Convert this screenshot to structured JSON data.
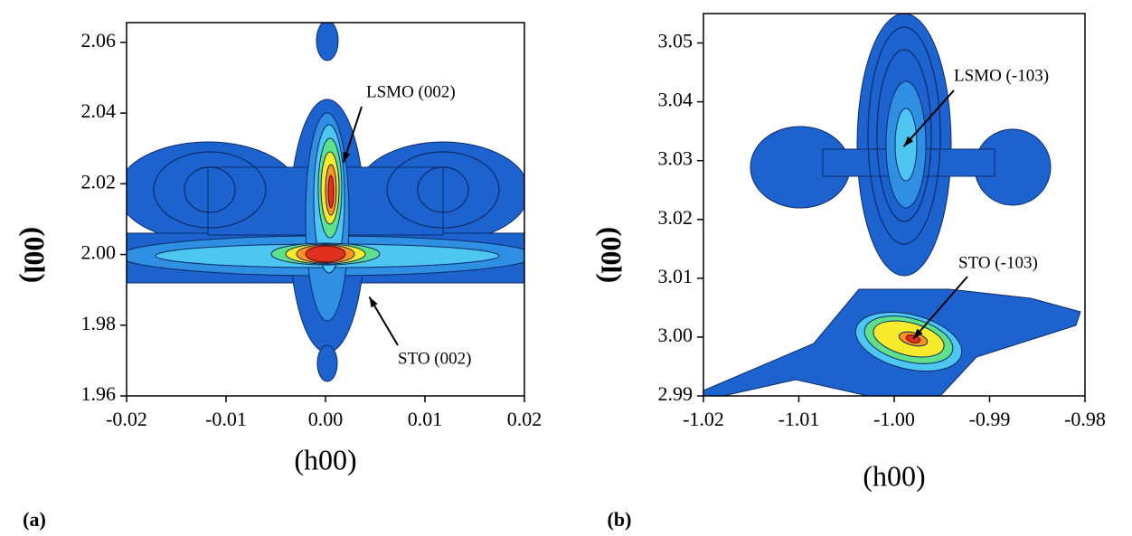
{
  "chart_data": [
    {
      "type": "contour",
      "panel_label": "(a)",
      "x_label": "(h00)",
      "y_label": "(00l)",
      "xlim": [
        -0.02,
        0.02
      ],
      "xticks": [
        -0.02,
        -0.01,
        {
          "value": 0,
          "label": "0.00"
        },
        0.01,
        0.02
      ],
      "ylim": [
        1.96,
        2.0656
      ],
      "yticks": [
        1.96,
        1.98,
        {
          "value": 2,
          "label": "2.00"
        },
        2.02,
        2.04,
        2.06
      ],
      "annotations": [
        {
          "text": "LSMO (002)",
          "x": 0.0018,
          "y": 2.026
        },
        {
          "text": "STO (002)",
          "x": 0.0044,
          "y": 1.988
        }
      ]
    },
    {
      "type": "contour",
      "panel_label": "(b)",
      "x_label": "(h00)",
      "y_label": "(00l)",
      "xlim": [
        -1.02,
        -0.98
      ],
      "xticks": [
        -1.02,
        -1.01,
        {
          "value": -1,
          "label": "-1.00"
        },
        -0.99,
        -0.98
      ],
      "ylim": [
        2.99,
        3.055
      ],
      "yticks": [
        2.99,
        {
          "value": 3,
          "label": "3.00"
        },
        3.01,
        3.02,
        3.03,
        3.04,
        3.05
      ],
      "annotations": [
        {
          "text": "LSMO (-103)",
          "x": -0.999,
          "y": 3.0324
        },
        {
          "text": "STO (-103)",
          "x": -0.998,
          "y": 2.9997
        }
      ]
    }
  ]
}
